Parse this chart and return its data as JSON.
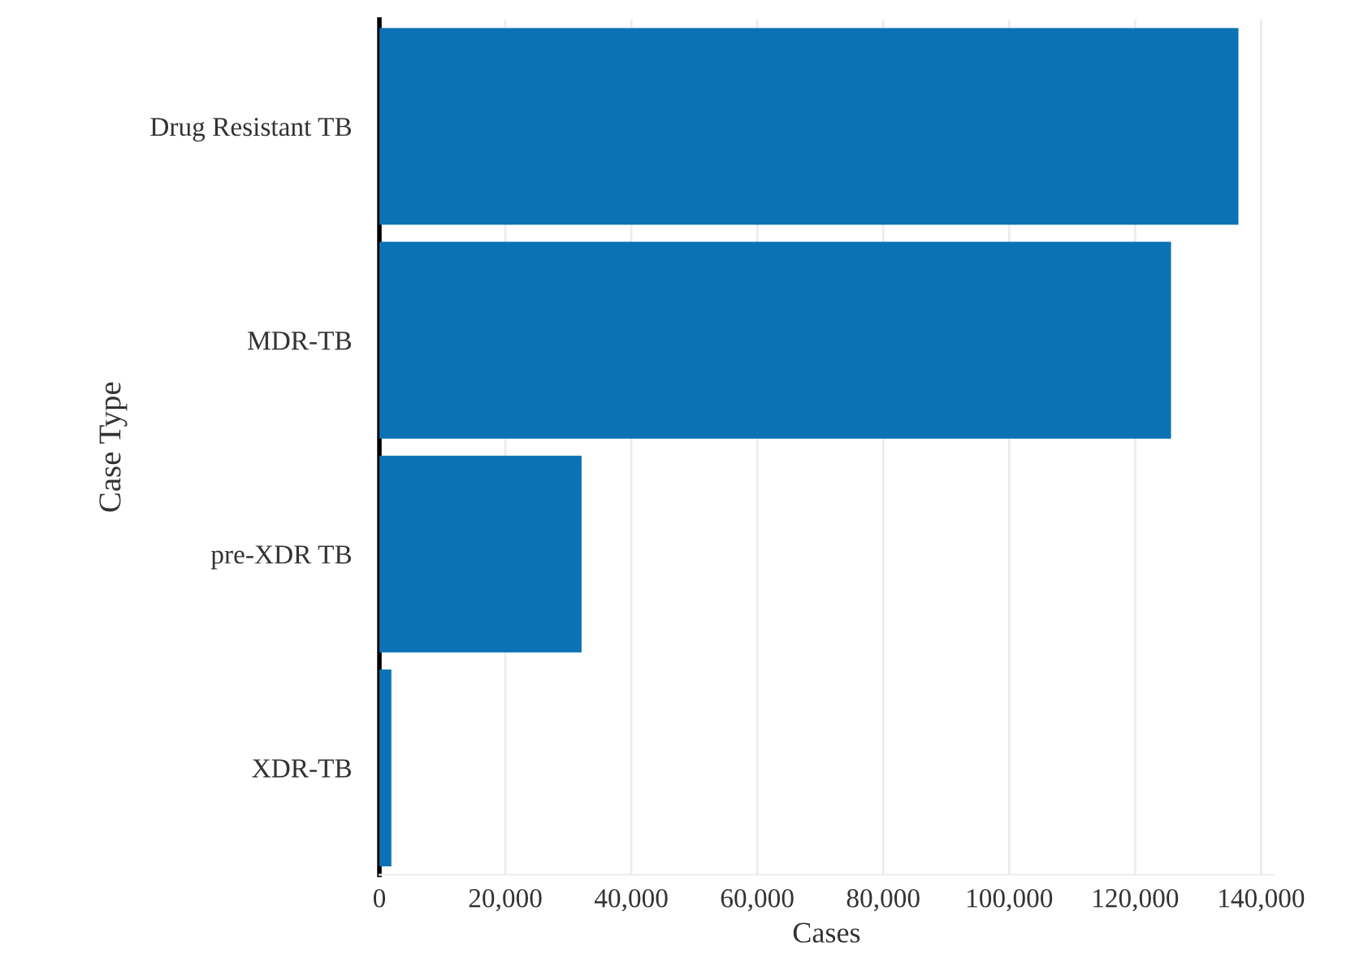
{
  "chart_data": {
    "type": "bar",
    "orientation": "horizontal",
    "xlabel": "Cases",
    "ylabel": "Case Type",
    "categories": [
      "Drug Resistant TB",
      "MDR-TB",
      "pre-XDR TB",
      "XDR-TB"
    ],
    "values": [
      136400,
      125700,
      32100,
      1900
    ],
    "color": "#0a72b5",
    "xlim": [
      0,
      142000
    ],
    "xticks": [
      0,
      {
        "value": 20000,
        "label": "20,000"
      },
      {
        "value": 40000,
        "label": "40,000"
      },
      {
        "value": 60000,
        "label": "60,000"
      },
      {
        "value": 80000,
        "label": "80,000"
      },
      {
        "value": 100000,
        "label": "100,000"
      },
      {
        "value": 120000,
        "label": "120,000"
      },
      {
        "value": 140000,
        "label": "140,000"
      }
    ],
    "grid": "x",
    "legend": false
  }
}
